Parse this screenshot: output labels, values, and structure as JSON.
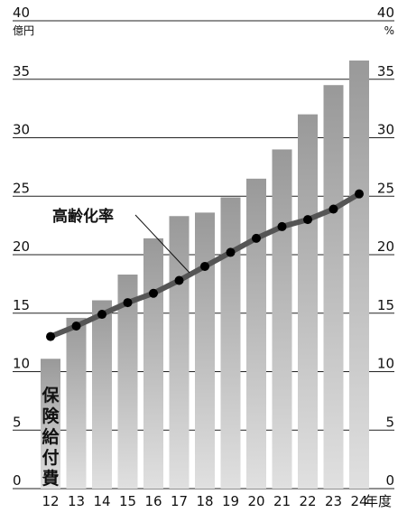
{
  "chart_data": {
    "type": "bar",
    "categories": [
      "12",
      "13",
      "14",
      "15",
      "16",
      "17",
      "18",
      "19",
      "20",
      "21",
      "22",
      "23",
      "24"
    ],
    "x_unit": "年度",
    "series": [
      {
        "name": "保険給付費",
        "type": "bar",
        "axis": "left",
        "values": [
          11.1,
          14.6,
          16.1,
          18.3,
          21.4,
          23.3,
          23.6,
          24.9,
          26.5,
          29.0,
          32.0,
          34.5,
          36.6
        ]
      },
      {
        "name": "高齢化率",
        "type": "line",
        "axis": "right",
        "values": [
          13.0,
          13.9,
          14.9,
          15.9,
          16.7,
          17.8,
          19.0,
          20.2,
          21.4,
          22.4,
          23.0,
          23.9,
          25.2
        ]
      }
    ],
    "y_left": {
      "unit": "億円",
      "ylim": [
        0,
        40
      ],
      "ticks": [
        0,
        5,
        10,
        15,
        20,
        25,
        30,
        35,
        40
      ]
    },
    "y_right": {
      "unit": "%",
      "ylim": [
        0,
        40
      ],
      "ticks": [
        0,
        5,
        10,
        15,
        20,
        25,
        30,
        35,
        40
      ]
    },
    "grid": true,
    "bar_color_top": "#999999",
    "bar_color_bottom": "#e0e0e0",
    "line_color": "#555555",
    "marker_color": "#000000"
  }
}
